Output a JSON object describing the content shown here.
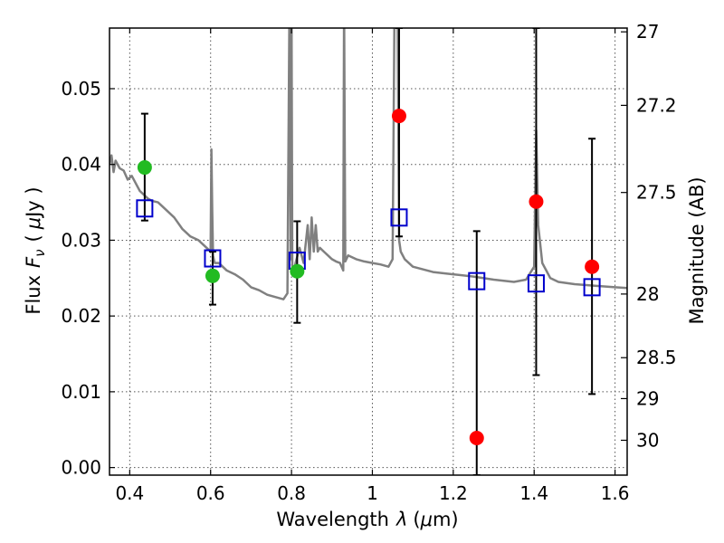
{
  "chart_data": {
    "type": "scatter",
    "xlabel_parts": [
      "Wavelength",
      "λ",
      "(",
      "μ",
      "m)"
    ],
    "ylabel_parts": [
      "Flux",
      "F",
      "ν",
      "(",
      "μ",
      "Jy )"
    ],
    "y2label": "Magnitude (AB)",
    "xlim": [
      0.35,
      1.63
    ],
    "ylim": [
      -0.001,
      0.058
    ],
    "grid": true,
    "x_ticks": [
      0.4,
      0.6,
      0.8,
      1.0,
      1.2,
      1.4,
      1.6
    ],
    "x_tick_labels": [
      "0.4",
      "0.6",
      "0.8",
      "1",
      "1.2",
      "1.4",
      "1.6"
    ],
    "y_ticks": [
      0.0,
      0.01,
      0.02,
      0.03,
      0.04,
      0.05
    ],
    "y_tick_labels": [
      "0.00",
      "0.01",
      "0.02",
      "0.03",
      "0.04",
      "0.05"
    ],
    "y2_ticks": [
      {
        "label": "27",
        "flux": 0.0575
      },
      {
        "label": "27.2",
        "flux": 0.0478
      },
      {
        "label": "27.5",
        "flux": 0.0363
      },
      {
        "label": "28",
        "flux": 0.0229
      },
      {
        "label": "28.5",
        "flux": 0.0145
      },
      {
        "label": "29",
        "flux": 0.0091
      },
      {
        "label": "30",
        "flux": 0.0036
      }
    ],
    "colors": {
      "model": "#808080",
      "model_points": "#0000cc",
      "detections": "#22bb22",
      "upper_limits": "#ff0000",
      "error_bars": "#000000"
    },
    "model_spectrum": {
      "x": [
        0.35,
        0.355,
        0.36,
        0.365,
        0.375,
        0.385,
        0.395,
        0.405,
        0.415,
        0.425,
        0.435,
        0.445,
        0.455,
        0.47,
        0.49,
        0.51,
        0.53,
        0.55,
        0.57,
        0.59,
        0.6,
        0.602,
        0.604,
        0.606,
        0.61,
        0.62,
        0.64,
        0.66,
        0.68,
        0.7,
        0.72,
        0.74,
        0.76,
        0.78,
        0.79,
        0.795,
        0.798,
        0.8,
        0.802,
        0.805,
        0.81,
        0.82,
        0.83,
        0.84,
        0.845,
        0.85,
        0.855,
        0.86,
        0.865,
        0.87,
        0.88,
        0.89,
        0.9,
        0.91,
        0.92,
        0.928,
        0.93,
        0.933,
        0.94,
        0.96,
        0.98,
        1.0,
        1.02,
        1.04,
        1.05,
        1.055,
        1.06,
        1.062,
        1.066,
        1.07,
        1.08,
        1.09,
        1.1,
        1.15,
        1.2,
        1.25,
        1.3,
        1.35,
        1.38,
        1.4,
        1.405,
        1.41,
        1.42,
        1.44,
        1.46,
        1.5,
        1.55,
        1.6,
        1.63
      ],
      "y": [
        0.04,
        0.0412,
        0.039,
        0.0405,
        0.0395,
        0.0392,
        0.038,
        0.0385,
        0.0375,
        0.0365,
        0.036,
        0.0355,
        0.0352,
        0.035,
        0.034,
        0.033,
        0.0315,
        0.0305,
        0.03,
        0.029,
        0.0285,
        0.042,
        0.034,
        0.028,
        0.027,
        0.027,
        0.026,
        0.0255,
        0.0248,
        0.0238,
        0.0234,
        0.0228,
        0.0225,
        0.0222,
        0.023,
        0.062,
        0.0275,
        0.062,
        0.026,
        0.0258,
        0.027,
        0.029,
        0.027,
        0.032,
        0.0275,
        0.033,
        0.0285,
        0.032,
        0.0285,
        0.029,
        0.0285,
        0.028,
        0.0275,
        0.0272,
        0.027,
        0.026,
        0.062,
        0.0272,
        0.028,
        0.0275,
        0.0272,
        0.027,
        0.0268,
        0.0265,
        0.0275,
        0.062,
        0.062,
        0.062,
        0.03,
        0.0285,
        0.0275,
        0.027,
        0.0265,
        0.0258,
        0.0255,
        0.0252,
        0.0248,
        0.0245,
        0.0248,
        0.0265,
        0.0445,
        0.032,
        0.027,
        0.025,
        0.0245,
        0.0242,
        0.024,
        0.0238,
        0.0237
      ]
    },
    "model_points": {
      "x": [
        0.437,
        0.605,
        0.814,
        1.066,
        1.258,
        1.405,
        1.543
      ],
      "y": [
        0.0342,
        0.0276,
        0.0273,
        0.033,
        0.0246,
        0.0243,
        0.0238
      ]
    },
    "detections": {
      "x": [
        0.437,
        0.605,
        0.814
      ],
      "y": [
        0.0396,
        0.0253,
        0.0259
      ],
      "yerr_low": [
        0.0326,
        0.0215,
        0.0191
      ],
      "yerr_high": [
        0.0467,
        0.0285,
        0.0325
      ]
    },
    "upper_limits": {
      "x": [
        1.066,
        1.258,
        1.405,
        1.543
      ],
      "y": [
        0.0464,
        0.0039,
        0.0351,
        0.0265
      ],
      "yerr_low": [
        0.0305,
        -0.001,
        0.0122,
        0.0097
      ],
      "yerr_high": [
        0.058,
        0.0312,
        0.058,
        0.0434
      ]
    }
  }
}
